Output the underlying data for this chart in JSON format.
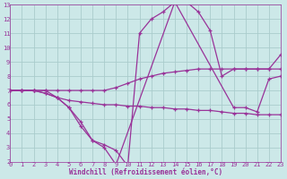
{
  "background_color": "#cce8e8",
  "grid_color": "#aacccc",
  "line_color": "#993399",
  "xlabel": "Windchill (Refroidissement éolien,°C)",
  "xlim": [
    0,
    23
  ],
  "ylim": [
    2,
    13
  ],
  "yticks": [
    2,
    3,
    4,
    5,
    6,
    7,
    8,
    9,
    10,
    11,
    12,
    13
  ],
  "xticks": [
    0,
    1,
    2,
    3,
    4,
    5,
    6,
    7,
    8,
    9,
    10,
    11,
    12,
    13,
    14,
    15,
    16,
    17,
    18,
    19,
    20,
    21,
    22,
    23
  ],
  "series": [
    {
      "x": [
        0,
        1,
        2,
        3,
        4,
        5,
        6,
        7,
        8,
        9,
        10,
        11,
        12,
        13,
        14,
        15,
        16,
        17,
        18,
        19,
        20,
        21,
        22,
        23
      ],
      "y": [
        7,
        7,
        7,
        6.8,
        6.5,
        5.8,
        4.8,
        3.5,
        3.2,
        2.8,
        1.7,
        11.0,
        12.0,
        12.5,
        13.2,
        13.2,
        12.5,
        11.2,
        8.0,
        8.5,
        8.5,
        8.5,
        8.5,
        9.5
      ]
    },
    {
      "x": [
        0,
        1,
        2,
        3,
        4,
        5,
        6,
        7,
        8,
        9,
        10,
        11,
        12,
        13,
        14,
        15,
        16,
        17,
        18,
        19,
        20,
        21,
        22,
        23
      ],
      "y": [
        7,
        7,
        7,
        7.0,
        7.0,
        7.0,
        7.0,
        7.0,
        7.0,
        7.2,
        7.5,
        7.8,
        8.0,
        8.2,
        8.3,
        8.4,
        8.5,
        8.5,
        8.5,
        8.5,
        8.5,
        8.5,
        8.5,
        8.5
      ]
    },
    {
      "x": [
        0,
        1,
        2,
        3,
        4,
        5,
        6,
        7,
        8,
        9,
        10,
        11,
        12,
        13,
        14,
        15,
        16,
        17,
        18,
        19,
        20,
        21,
        22,
        23
      ],
      "y": [
        7,
        7,
        7,
        6.8,
        6.5,
        6.3,
        6.2,
        6.1,
        6.0,
        6.0,
        5.9,
        5.9,
        5.8,
        5.8,
        5.7,
        5.7,
        5.6,
        5.6,
        5.5,
        5.4,
        5.4,
        5.3,
        5.3,
        5.3
      ]
    },
    {
      "x": [
        0,
        1,
        2,
        3,
        4,
        5,
        6,
        7,
        8,
        9,
        14,
        19,
        20,
        21,
        22,
        23
      ],
      "y": [
        7,
        7,
        7,
        7.0,
        6.5,
        5.8,
        4.5,
        3.5,
        3.0,
        1.8,
        13.2,
        5.8,
        5.8,
        5.5,
        7.8,
        8.0
      ]
    }
  ],
  "linewidth": 0.9,
  "markersize": 3.0,
  "tick_fontsize": 5.0,
  "xlabel_fontsize": 5.5
}
